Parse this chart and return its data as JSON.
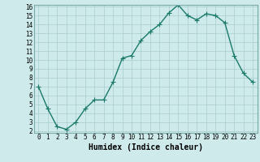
{
  "x": [
    0,
    1,
    2,
    3,
    4,
    5,
    6,
    7,
    8,
    9,
    10,
    11,
    12,
    13,
    14,
    15,
    16,
    17,
    18,
    19,
    20,
    21,
    22,
    23
  ],
  "y": [
    7.0,
    4.5,
    2.5,
    2.2,
    3.0,
    4.5,
    5.5,
    5.5,
    7.5,
    10.2,
    10.5,
    12.2,
    13.2,
    14.0,
    15.3,
    16.2,
    15.0,
    14.5,
    15.2,
    15.0,
    14.2,
    10.5,
    8.5,
    7.5
  ],
  "line_color": "#1a7a6a",
  "bg_color": "#ceeaea",
  "grid_color": "#a8cccc",
  "xlabel": "Humidex (Indice chaleur)",
  "ylim": [
    2,
    16
  ],
  "xlim": [
    -0.5,
    23.5
  ],
  "yticks": [
    2,
    3,
    4,
    5,
    6,
    7,
    8,
    9,
    10,
    11,
    12,
    13,
    14,
    15,
    16
  ],
  "xticks": [
    0,
    1,
    2,
    3,
    4,
    5,
    6,
    7,
    8,
    9,
    10,
    11,
    12,
    13,
    14,
    15,
    16,
    17,
    18,
    19,
    20,
    21,
    22,
    23
  ],
  "marker": "+",
  "marker_size": 4,
  "linewidth": 1.0,
  "xlabel_fontsize": 7,
  "tick_fontsize": 5.5
}
